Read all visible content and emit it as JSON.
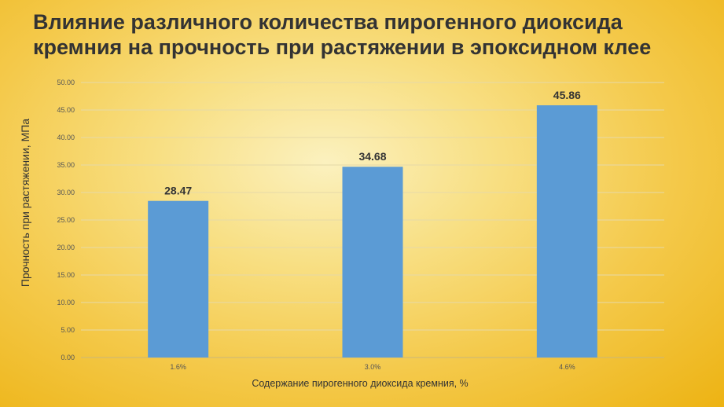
{
  "colors": {
    "bar": "#5b9bd5",
    "background": "#f4c94a",
    "text": "#333333",
    "grid": "#e6d9a8"
  },
  "chart_data": {
    "type": "bar",
    "title": "Влияние различного количества пирогенного диоксида кремния на прочность при растяжении в эпоксидном клее",
    "xlabel": "Содержание пирогенного диоксида кремния, %",
    "ylabel": "Прочность при растяжении, МПа",
    "categories": [
      "1.6%",
      "3.0%",
      "4.6%"
    ],
    "values": [
      28.47,
      34.68,
      45.86
    ],
    "value_labels": [
      "28.47",
      "34.68",
      "45.86"
    ],
    "ylim": [
      0,
      50
    ],
    "yticks": [
      "0.00",
      "5.00",
      "10.00",
      "15.00",
      "20.00",
      "25.00",
      "30.00",
      "35.00",
      "40.00",
      "45.00",
      "50.00"
    ],
    "grid": true,
    "legend": "none"
  }
}
